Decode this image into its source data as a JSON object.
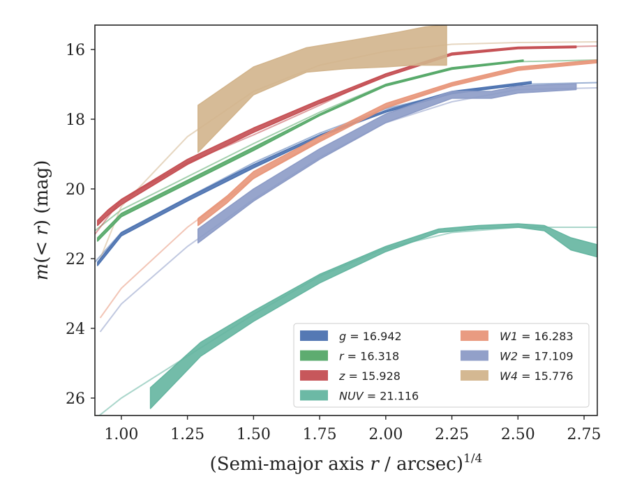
{
  "chart_data": {
    "type": "line",
    "xlabel": "(Semi-major axis r / arcsec)",
    "xlabel_parts": {
      "main": "(Semi-major axis ",
      "var": "r",
      "rest": " / arcsec)",
      "sup": "1/4"
    },
    "ylabel": "m(< r) (mag)",
    "ylabel_parts": {
      "m": "m",
      "open": "(",
      "lt": "< ",
      "r": "r",
      "close": ")",
      "unit": " (mag)"
    },
    "xlim": [
      0.9,
      2.8
    ],
    "ylim": [
      26.5,
      15.3
    ],
    "y_inverted": true,
    "xticks": [
      "1.00",
      "1.25",
      "1.50",
      "1.75",
      "2.00",
      "2.25",
      "2.50",
      "2.75"
    ],
    "xtick_values": [
      1.0,
      1.25,
      1.5,
      1.75,
      2.0,
      2.25,
      2.5,
      2.75
    ],
    "yticks": [
      "16",
      "18",
      "20",
      "22",
      "24",
      "26"
    ],
    "ytick_values": [
      16,
      18,
      20,
      22,
      24,
      26
    ],
    "grid": false,
    "legend_position": "lower-right",
    "series": [
      {
        "id": "g",
        "label_var": "g",
        "label_val": "16.942",
        "color": "#4c72b0",
        "model": [
          [
            0.9,
            22.1
          ],
          [
            1.0,
            21.25
          ],
          [
            1.25,
            20.25
          ],
          [
            1.5,
            19.25
          ],
          [
            1.75,
            18.4
          ],
          [
            2.0,
            17.7
          ],
          [
            2.25,
            17.25
          ],
          [
            2.5,
            17.0
          ],
          [
            2.8,
            16.95
          ]
        ],
        "band_upper": [
          [
            0.91,
            22.1
          ],
          [
            1.0,
            21.25
          ],
          [
            1.25,
            20.25
          ],
          [
            1.5,
            19.3
          ],
          [
            1.75,
            18.45
          ],
          [
            2.0,
            17.75
          ],
          [
            2.25,
            17.2
          ],
          [
            2.55,
            16.92
          ]
        ],
        "band_lower": [
          [
            0.91,
            22.2
          ],
          [
            1.0,
            21.35
          ],
          [
            1.25,
            20.35
          ],
          [
            1.5,
            19.4
          ],
          [
            1.75,
            18.5
          ],
          [
            2.0,
            17.8
          ],
          [
            2.25,
            17.27
          ],
          [
            2.55,
            16.98
          ]
        ]
      },
      {
        "id": "r",
        "label_var": "r",
        "label_val": "16.318",
        "color": "#55a868",
        "model": [
          [
            0.9,
            21.2
          ],
          [
            1.0,
            20.6
          ],
          [
            1.25,
            19.65
          ],
          [
            1.5,
            18.7
          ],
          [
            1.75,
            17.8
          ],
          [
            2.0,
            17.0
          ],
          [
            2.25,
            16.55
          ],
          [
            2.5,
            16.35
          ],
          [
            2.8,
            16.3
          ]
        ],
        "band_upper": [
          [
            0.91,
            21.4
          ],
          [
            1.0,
            20.7
          ],
          [
            1.25,
            19.75
          ],
          [
            1.5,
            18.8
          ],
          [
            1.75,
            17.85
          ],
          [
            2.0,
            17.0
          ],
          [
            2.25,
            16.52
          ],
          [
            2.52,
            16.3
          ]
        ],
        "band_lower": [
          [
            0.91,
            21.5
          ],
          [
            1.0,
            20.8
          ],
          [
            1.25,
            19.85
          ],
          [
            1.5,
            18.9
          ],
          [
            1.75,
            17.9
          ],
          [
            2.0,
            17.05
          ],
          [
            2.25,
            16.57
          ],
          [
            2.52,
            16.34
          ]
        ]
      },
      {
        "id": "z",
        "label_var": "z",
        "label_val": "15.928",
        "color": "#c44e52",
        "model": [
          [
            0.9,
            21.3
          ],
          [
            1.0,
            20.3
          ],
          [
            1.25,
            19.25
          ],
          [
            1.5,
            18.45
          ],
          [
            1.75,
            17.6
          ],
          [
            2.0,
            16.7
          ],
          [
            2.25,
            16.15
          ],
          [
            2.5,
            15.95
          ],
          [
            2.8,
            15.9
          ]
        ],
        "band_upper": [
          [
            0.91,
            20.9
          ],
          [
            0.95,
            20.6
          ],
          [
            1.0,
            20.3
          ],
          [
            1.25,
            19.15
          ],
          [
            1.5,
            18.25
          ],
          [
            1.75,
            17.45
          ],
          [
            2.0,
            16.7
          ],
          [
            2.25,
            16.1
          ],
          [
            2.5,
            15.93
          ],
          [
            2.72,
            15.9
          ]
        ],
        "band_lower": [
          [
            0.91,
            21.05
          ],
          [
            0.95,
            20.75
          ],
          [
            1.0,
            20.45
          ],
          [
            1.25,
            19.3
          ],
          [
            1.5,
            18.38
          ],
          [
            1.75,
            17.55
          ],
          [
            2.0,
            16.78
          ],
          [
            2.25,
            16.16
          ],
          [
            2.5,
            15.98
          ],
          [
            2.72,
            15.95
          ]
        ]
      },
      {
        "id": "NUV",
        "label_var": "NUV",
        "label_val": "21.116",
        "color": "#64b5a0",
        "model": [
          [
            0.9,
            26.6
          ],
          [
            1.0,
            26.0
          ],
          [
            1.25,
            24.8
          ],
          [
            1.5,
            23.6
          ],
          [
            1.75,
            22.5
          ],
          [
            2.0,
            21.7
          ],
          [
            2.25,
            21.25
          ],
          [
            2.5,
            21.1
          ],
          [
            2.8,
            21.1
          ]
        ],
        "band_upper": [
          [
            1.11,
            25.7
          ],
          [
            1.3,
            24.4
          ],
          [
            1.5,
            23.5
          ],
          [
            1.75,
            22.45
          ],
          [
            2.0,
            21.65
          ],
          [
            2.2,
            21.15
          ],
          [
            2.35,
            21.05
          ],
          [
            2.5,
            21.0
          ],
          [
            2.6,
            21.05
          ],
          [
            2.7,
            21.4
          ],
          [
            2.8,
            21.6
          ]
        ],
        "band_lower": [
          [
            1.11,
            26.3
          ],
          [
            1.3,
            24.8
          ],
          [
            1.5,
            23.8
          ],
          [
            1.75,
            22.7
          ],
          [
            2.0,
            21.8
          ],
          [
            2.2,
            21.25
          ],
          [
            2.35,
            21.15
          ],
          [
            2.5,
            21.1
          ],
          [
            2.6,
            21.2
          ],
          [
            2.7,
            21.75
          ],
          [
            2.8,
            21.95
          ]
        ]
      },
      {
        "id": "W1",
        "label_var": "W1",
        "label_val": "16.283",
        "color": "#e8967a",
        "model": [
          [
            0.92,
            23.7
          ],
          [
            1.0,
            22.85
          ],
          [
            1.25,
            21.1
          ],
          [
            1.5,
            19.7
          ],
          [
            1.75,
            18.6
          ],
          [
            2.0,
            17.65
          ],
          [
            2.25,
            17.0
          ],
          [
            2.5,
            16.55
          ],
          [
            2.8,
            16.33
          ]
        ],
        "band_upper": [
          [
            1.29,
            20.85
          ],
          [
            1.4,
            20.2
          ],
          [
            1.5,
            19.5
          ],
          [
            1.75,
            18.5
          ],
          [
            2.0,
            17.55
          ],
          [
            2.25,
            16.95
          ],
          [
            2.5,
            16.5
          ],
          [
            2.8,
            16.3
          ]
        ],
        "band_lower": [
          [
            1.29,
            21.05
          ],
          [
            1.4,
            20.4
          ],
          [
            1.5,
            19.7
          ],
          [
            1.75,
            18.65
          ],
          [
            2.0,
            17.68
          ],
          [
            2.25,
            17.05
          ],
          [
            2.5,
            16.6
          ],
          [
            2.8,
            16.38
          ]
        ]
      },
      {
        "id": "W2",
        "label_var": "W2",
        "label_val": "17.109",
        "color": "#8c9bc6",
        "model": [
          [
            0.92,
            24.1
          ],
          [
            1.0,
            23.3
          ],
          [
            1.25,
            21.65
          ],
          [
            1.5,
            20.3
          ],
          [
            1.75,
            19.1
          ],
          [
            2.0,
            18.1
          ],
          [
            2.25,
            17.5
          ],
          [
            2.5,
            17.15
          ],
          [
            2.8,
            17.1
          ]
        ],
        "band_upper": [
          [
            1.29,
            21.15
          ],
          [
            1.5,
            20.0
          ],
          [
            1.75,
            18.85
          ],
          [
            2.0,
            17.85
          ],
          [
            2.25,
            17.2
          ],
          [
            2.4,
            17.2
          ],
          [
            2.5,
            17.05
          ],
          [
            2.72,
            16.98
          ]
        ],
        "band_lower": [
          [
            1.29,
            21.55
          ],
          [
            1.5,
            20.35
          ],
          [
            1.75,
            19.15
          ],
          [
            2.0,
            18.1
          ],
          [
            2.25,
            17.4
          ],
          [
            2.4,
            17.4
          ],
          [
            2.5,
            17.25
          ],
          [
            2.72,
            17.15
          ]
        ]
      },
      {
        "id": "W4",
        "label_var": "W4",
        "label_val": "15.776",
        "color": "#d2b48c",
        "model": [
          [
            0.92,
            22.0
          ],
          [
            1.0,
            20.5
          ],
          [
            1.25,
            18.5
          ],
          [
            1.5,
            17.2
          ],
          [
            1.75,
            16.45
          ],
          [
            2.0,
            16.05
          ],
          [
            2.25,
            15.85
          ],
          [
            2.5,
            15.8
          ],
          [
            2.8,
            15.78
          ]
        ],
        "band_upper": [
          [
            1.29,
            17.6
          ],
          [
            1.5,
            16.5
          ],
          [
            1.7,
            15.95
          ],
          [
            1.9,
            15.7
          ],
          [
            2.05,
            15.5
          ],
          [
            2.15,
            15.35
          ],
          [
            2.23,
            15.3
          ]
        ],
        "band_lower": [
          [
            1.29,
            18.95
          ],
          [
            1.5,
            17.3
          ],
          [
            1.7,
            16.65
          ],
          [
            1.85,
            16.55
          ],
          [
            2.0,
            16.5
          ],
          [
            2.1,
            16.45
          ],
          [
            2.23,
            16.45
          ]
        ]
      }
    ],
    "legend": {
      "columns": [
        [
          "g",
          "r",
          "z",
          "NUV"
        ],
        [
          "W1",
          "W2",
          "W4"
        ]
      ]
    }
  }
}
